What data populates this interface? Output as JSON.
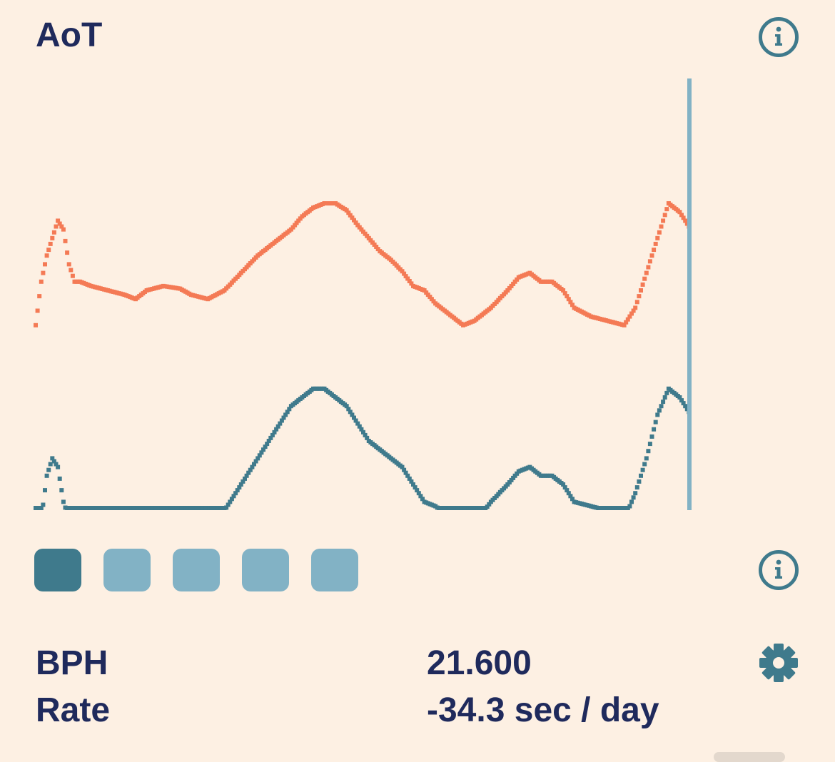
{
  "header": {
    "title": "AoT"
  },
  "icons": {
    "info_top": "info-icon",
    "info_mid": "info-icon",
    "settings": "gear-icon"
  },
  "colors": {
    "background": "#fdf0e3",
    "text": "#1f2a5c",
    "accent": "#3f7a8c",
    "accent_light": "#82b2c5",
    "trace_orange": "#f47a55",
    "trace_teal": "#3f7a8c",
    "cursor_line": "#82b2c5"
  },
  "segments": {
    "count": 5,
    "active_index": 0
  },
  "stats": {
    "bph_label": "BPH",
    "bph_value": "21.600",
    "rate_label": "Rate",
    "rate_value": "-34.3 sec / day"
  },
  "trace": {
    "orange": [
      [
        0,
        14
      ],
      [
        1,
        9
      ],
      [
        2,
        6
      ],
      [
        3,
        4
      ],
      [
        4,
        2
      ],
      [
        5,
        3
      ],
      [
        6,
        7
      ],
      [
        7,
        9
      ],
      [
        8,
        9
      ],
      [
        10,
        9.5
      ],
      [
        13,
        10
      ],
      [
        16,
        10.5
      ],
      [
        18,
        11
      ],
      [
        20,
        10
      ],
      [
        23,
        9.5
      ],
      [
        26,
        9.8
      ],
      [
        28,
        10.5
      ],
      [
        31,
        11
      ],
      [
        34,
        10
      ],
      [
        37,
        8
      ],
      [
        40,
        6
      ],
      [
        43,
        4.5
      ],
      [
        46,
        3
      ],
      [
        48,
        1.5
      ],
      [
        50,
        0.5
      ],
      [
        52,
        0
      ],
      [
        54,
        0
      ],
      [
        56,
        0.8
      ],
      [
        58,
        2.5
      ],
      [
        60,
        4
      ],
      [
        62,
        5.5
      ],
      [
        64,
        6.5
      ],
      [
        66,
        7.8
      ],
      [
        68,
        9.5
      ],
      [
        70,
        10
      ],
      [
        72,
        11.5
      ],
      [
        75,
        13
      ],
      [
        77,
        14
      ],
      [
        79,
        13.5
      ],
      [
        82,
        12
      ],
      [
        85,
        10
      ],
      [
        87,
        8.5
      ],
      [
        89,
        8
      ],
      [
        91,
        9
      ],
      [
        93,
        9
      ],
      [
        95,
        10
      ],
      [
        97,
        12
      ],
      [
        100,
        13
      ],
      [
        103,
        13.5
      ],
      [
        106,
        14
      ],
      [
        108,
        12
      ],
      [
        110,
        8
      ],
      [
        112,
        4
      ],
      [
        114,
        0
      ],
      [
        116,
        1
      ],
      [
        118,
        3
      ]
    ],
    "teal": [
      [
        0,
        37
      ],
      [
        0.5,
        30
      ],
      [
        1,
        24
      ],
      [
        2,
        19
      ],
      [
        3,
        17
      ],
      [
        4,
        18
      ],
      [
        5,
        22
      ],
      [
        6,
        24
      ],
      [
        7,
        23
      ],
      [
        9,
        25
      ],
      [
        12,
        26
      ],
      [
        15,
        25
      ],
      [
        18,
        24
      ],
      [
        21,
        24.5
      ],
      [
        24,
        23
      ],
      [
        27,
        23.5
      ],
      [
        30,
        25
      ],
      [
        34,
        23
      ],
      [
        37,
        20
      ],
      [
        40,
        17
      ],
      [
        43,
        14
      ],
      [
        46,
        11
      ],
      [
        48,
        10
      ],
      [
        50,
        9
      ],
      [
        52,
        9
      ],
      [
        54,
        10
      ],
      [
        56,
        11
      ],
      [
        58,
        13
      ],
      [
        60,
        15
      ],
      [
        62,
        16
      ],
      [
        64,
        17
      ],
      [
        66,
        18
      ],
      [
        68,
        20
      ],
      [
        70,
        22
      ],
      [
        72,
        22.5
      ],
      [
        75,
        24
      ],
      [
        77,
        25
      ],
      [
        79,
        24.5
      ],
      [
        82,
        22
      ],
      [
        85,
        20
      ],
      [
        87,
        18.5
      ],
      [
        89,
        18
      ],
      [
        91,
        19
      ],
      [
        93,
        19
      ],
      [
        95,
        20
      ],
      [
        97,
        22
      ],
      [
        100,
        22.5
      ],
      [
        103,
        23
      ],
      [
        106,
        24
      ],
      [
        108,
        21
      ],
      [
        110,
        17
      ],
      [
        112,
        12
      ],
      [
        114,
        9
      ],
      [
        116,
        10
      ],
      [
        118,
        12
      ]
    ]
  }
}
